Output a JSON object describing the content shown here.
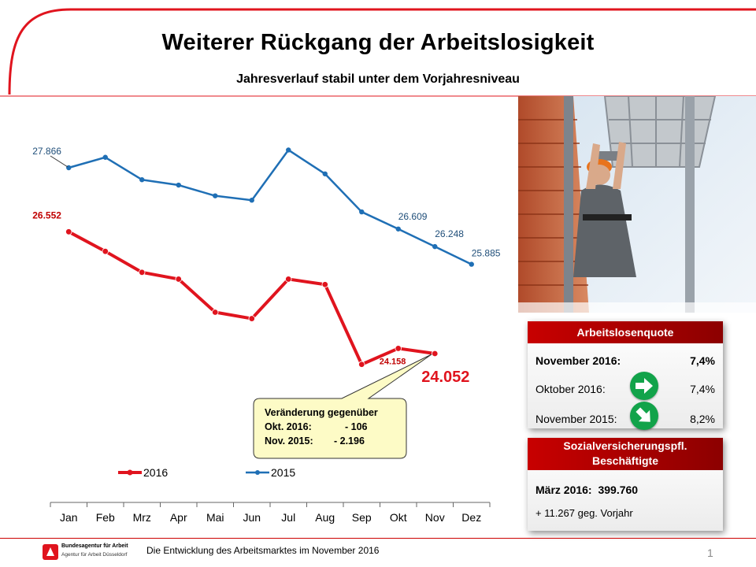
{
  "slide": {
    "title": "Weiterer Rückgang der Arbeitslosigkeit",
    "subtitle": "Jahresverlauf stabil unter dem Vorjahresniveau",
    "footer_text": "Die Entwicklung des Arbeitsmarktes im November  2016",
    "org_name": "Bundesagentur für Arbeit",
    "org_sub": "Agentur für Arbeit Düsseldorf",
    "page_number": "1"
  },
  "colors": {
    "accent_red": "#e0141e",
    "series_2015": "#1f6fb5",
    "series_2016": "#e0141e",
    "panel_header": "#b30000",
    "callout_fill": "#fdfbc6",
    "badge_green": "#12a34a"
  },
  "chart_data": {
    "type": "line",
    "title": "",
    "xlabel": "",
    "ylabel": "",
    "categories": [
      "Jan",
      "Feb",
      "Mrz",
      "Apr",
      "Mai",
      "Jun",
      "Jul",
      "Aug",
      "Sep",
      "Okt",
      "Nov",
      "Dez"
    ],
    "ylim": [
      23000,
      29000
    ],
    "grid": false,
    "legend_position": "bottom",
    "series": [
      {
        "name": "2016",
        "color": "#e0141e",
        "values": [
          26552,
          26150,
          25720,
          25580,
          24900,
          24770,
          25580,
          25470,
          23830,
          24158,
          24052,
          null
        ]
      },
      {
        "name": "2015",
        "color": "#1f6fb5",
        "values": [
          27866,
          28080,
          27620,
          27510,
          27290,
          27200,
          28230,
          27740,
          26960,
          26609,
          26248,
          25885
        ]
      }
    ],
    "data_labels": [
      {
        "series": "2015",
        "category": "Jan",
        "text": "27.866"
      },
      {
        "series": "2015",
        "category": "Okt",
        "text": "26.609"
      },
      {
        "series": "2015",
        "category": "Nov",
        "text": "26.248"
      },
      {
        "series": "2015",
        "category": "Dez",
        "text": "25.885"
      },
      {
        "series": "2016",
        "category": "Jan",
        "text": "26.552"
      },
      {
        "series": "2016",
        "category": "Okt",
        "text": "24.158"
      },
      {
        "series": "2016",
        "category": "Nov",
        "text": "24.052"
      }
    ],
    "callout": {
      "line1": "Veränderung gegenüber",
      "line2_label": "Okt. 2016:",
      "line2_value": "- 106",
      "line3_label": "Nov. 2015:",
      "line3_value": "- 2.196"
    }
  },
  "panels": {
    "quote": {
      "header": "Arbeitslosenquote",
      "rows": [
        {
          "label": "November 2016:",
          "value": "7,4%",
          "icon": ""
        },
        {
          "label": "Oktober 2016:",
          "value": "7,4%",
          "icon": "arrow-right-icon"
        },
        {
          "label": "November 2015:",
          "value": "8,2%",
          "icon": "arrow-down-right-icon"
        }
      ]
    },
    "employment": {
      "header_line1": "Sozialversicherungspfl.",
      "header_line2": "Beschäftigte",
      "line1_label": "März 2016:",
      "line1_value": "399.760",
      "line2": "+ 11.267 geg. Vorjahr"
    }
  }
}
